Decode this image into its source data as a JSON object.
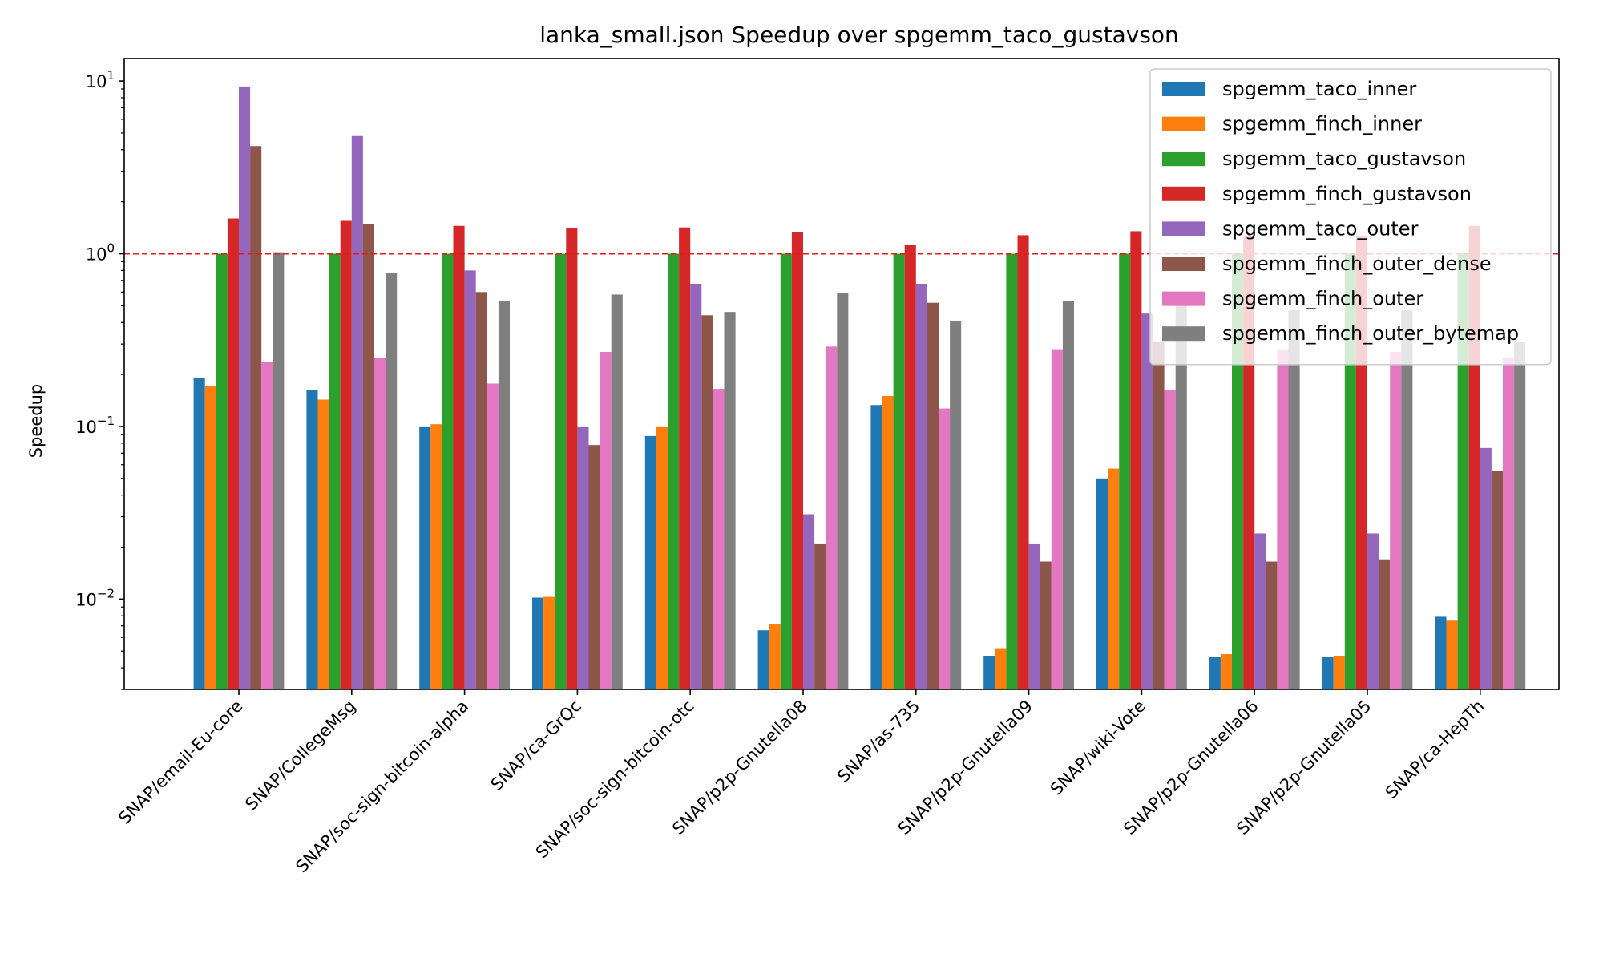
{
  "chart_data": {
    "type": "bar",
    "title": "lanka_small.json Speedup over spgemm_taco_gustavson",
    "xlabel": "",
    "ylabel": "Speedup",
    "yscale": "log",
    "ylim": [
      0.003,
      13.5
    ],
    "yticks": [
      {
        "value": 0.01,
        "base": "10",
        "exp": "−2"
      },
      {
        "value": 0.1,
        "base": "10",
        "exp": "−1"
      },
      {
        "value": 1,
        "base": "10",
        "exp": "0"
      },
      {
        "value": 10,
        "base": "10",
        "exp": "1"
      }
    ],
    "reference_line": {
      "value": 1.0,
      "color": "#e41a1c",
      "style": "dashed"
    },
    "legend_position": "top-right",
    "categories": [
      "SNAP/email-Eu-core",
      "SNAP/CollegeMsg",
      "SNAP/soc-sign-bitcoin-alpha",
      "SNAP/ca-GrQc",
      "SNAP/soc-sign-bitcoin-otc",
      "SNAP/p2p-Gnutella08",
      "SNAP/as-735",
      "SNAP/p2p-Gnutella09",
      "SNAP/wiki-Vote",
      "SNAP/p2p-Gnutella06",
      "SNAP/p2p-Gnutella05",
      "SNAP/ca-HepTh"
    ],
    "series": [
      {
        "name": "spgemm_taco_inner",
        "color": "#1f77b4",
        "values": [
          0.19,
          0.162,
          0.099,
          0.0102,
          0.088,
          0.0066,
          0.133,
          0.0047,
          0.05,
          0.0046,
          0.0046,
          0.0079
        ]
      },
      {
        "name": "spgemm_finch_inner",
        "color": "#ff7f0e",
        "values": [
          0.172,
          0.143,
          0.103,
          0.0103,
          0.099,
          0.0072,
          0.15,
          0.0052,
          0.057,
          0.0048,
          0.0047,
          0.0075
        ]
      },
      {
        "name": "spgemm_taco_gustavson",
        "color": "#2ca02c",
        "values": [
          1.0,
          1.0,
          1.0,
          1.0,
          1.0,
          1.0,
          1.0,
          1.0,
          1.0,
          1.0,
          1.0,
          1.0
        ]
      },
      {
        "name": "spgemm_finch_gustavson",
        "color": "#d62728",
        "values": [
          1.6,
          1.55,
          1.45,
          1.4,
          1.42,
          1.33,
          1.12,
          1.28,
          1.35,
          1.27,
          1.27,
          1.45
        ]
      },
      {
        "name": "spgemm_taco_outer",
        "color": "#9467bd",
        "values": [
          9.3,
          4.8,
          0.8,
          0.099,
          0.67,
          0.031,
          0.67,
          0.021,
          0.45,
          0.024,
          0.024,
          0.075
        ]
      },
      {
        "name": "spgemm_finch_outer_dense",
        "color": "#8c564b",
        "values": [
          4.2,
          1.48,
          0.6,
          0.078,
          0.44,
          0.021,
          0.52,
          0.0165,
          0.31,
          0.0165,
          0.017,
          0.055
        ]
      },
      {
        "name": "spgemm_finch_outer",
        "color": "#e377c2",
        "values": [
          0.235,
          0.25,
          0.177,
          0.27,
          0.165,
          0.29,
          0.127,
          0.28,
          0.163,
          0.28,
          0.27,
          0.25
        ]
      },
      {
        "name": "spgemm_finch_outer_bytemap",
        "color": "#7f7f7f",
        "values": [
          1.02,
          0.77,
          0.53,
          0.58,
          0.46,
          0.59,
          0.41,
          0.53,
          0.52,
          0.47,
          0.47,
          0.31
        ]
      }
    ]
  }
}
